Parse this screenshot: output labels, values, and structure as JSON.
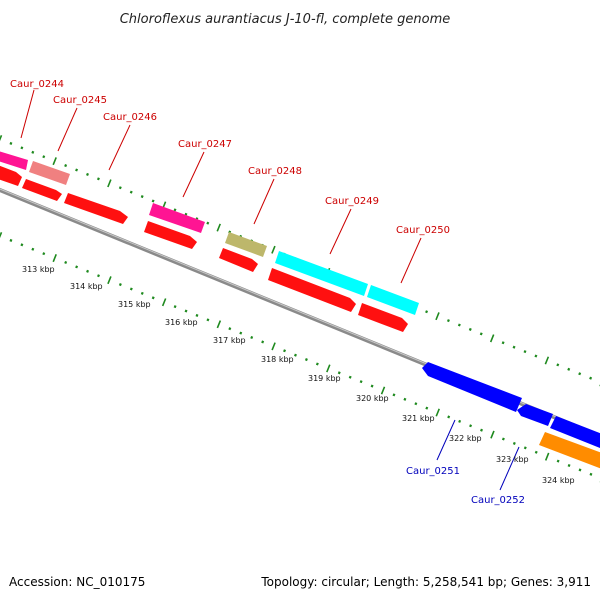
{
  "title": "Chloroflexus aurantiacus J-10-fl, complete genome",
  "footer": {
    "accession": "Accession: NC_010175",
    "summary": "Topology: circular; Length: 5,258,541 bp; Genes: 3,911"
  },
  "colors": {
    "backbone": "#8a8a8a",
    "tick_green": "#1f8a1f",
    "label_forward": "#cc0000",
    "label_reverse": "#0000bb",
    "cds_red": "#ff1010",
    "gene_pink": "#ff1493",
    "gene_salmon": "#f08080",
    "gene_khaki": "#bdb76b",
    "gene_cyan": "#00ffff",
    "gene_blue": "#0000ff",
    "gene_orange": "#ff8c00"
  },
  "scale_labels": [
    "313 kbp",
    "314 kbp",
    "315 kbp",
    "316 kbp",
    "317 kbp",
    "318 kbp",
    "319 kbp",
    "320 kbp",
    "321 kbp",
    "322 kbp",
    "323 kbp",
    "324 kbp"
  ],
  "forward_genes": [
    {
      "label": "Caur_0244",
      "color": "gene_pink"
    },
    {
      "label": "Caur_0245",
      "color": "gene_salmon"
    },
    {
      "label": "Caur_0246",
      "color": "cds_red"
    },
    {
      "label": "Caur_0247",
      "color": "gene_pink"
    },
    {
      "label": "Caur_0248",
      "color": "gene_khaki"
    },
    {
      "label": "Caur_0249",
      "color": "gene_cyan"
    },
    {
      "label": "Caur_0250",
      "color": "gene_cyan"
    }
  ],
  "reverse_genes": [
    {
      "label": "Caur_0251",
      "color": "gene_blue"
    },
    {
      "label": "Caur_0252",
      "color": "gene_blue"
    }
  ]
}
